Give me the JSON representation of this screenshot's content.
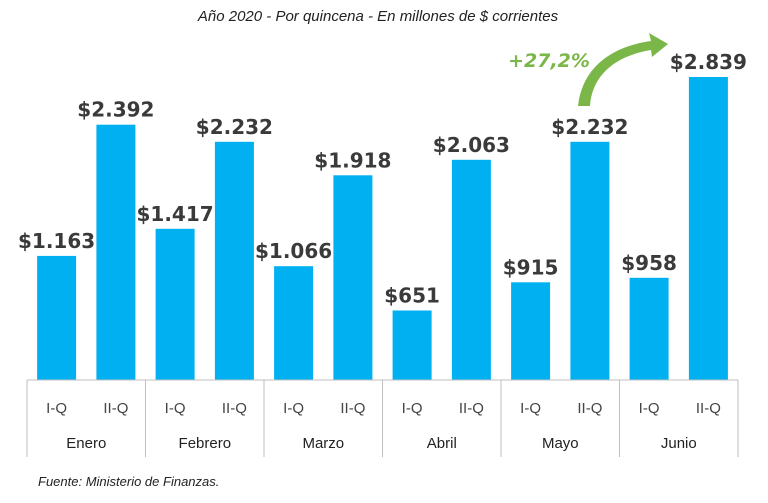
{
  "chart_data": {
    "type": "bar",
    "title": "Año 2020 - Por quincena - En millones de $ corrientes",
    "source": "Fuente: Ministerio de Finanzas.",
    "groups": [
      "Enero",
      "Febrero",
      "Marzo",
      "Abril",
      "Mayo",
      "Junio"
    ],
    "subcategories": [
      "I-Q",
      "II-Q"
    ],
    "values": [
      1163,
      2392,
      1417,
      2232,
      1066,
      1918,
      651,
      2063,
      915,
      2232,
      958,
      2839
    ],
    "labels": [
      "$1.163",
      "$2.392",
      "$1.417",
      "$2.232",
      "$1.066",
      "$1.918",
      "$651",
      "$2.063",
      "$915",
      "$2.232",
      "$958",
      "$2.839"
    ],
    "ylim": [
      0,
      2839
    ],
    "grid": false,
    "bar_color": "#00b0f0",
    "annotation": {
      "text": "+27,2%",
      "color": "#7ab648"
    }
  }
}
